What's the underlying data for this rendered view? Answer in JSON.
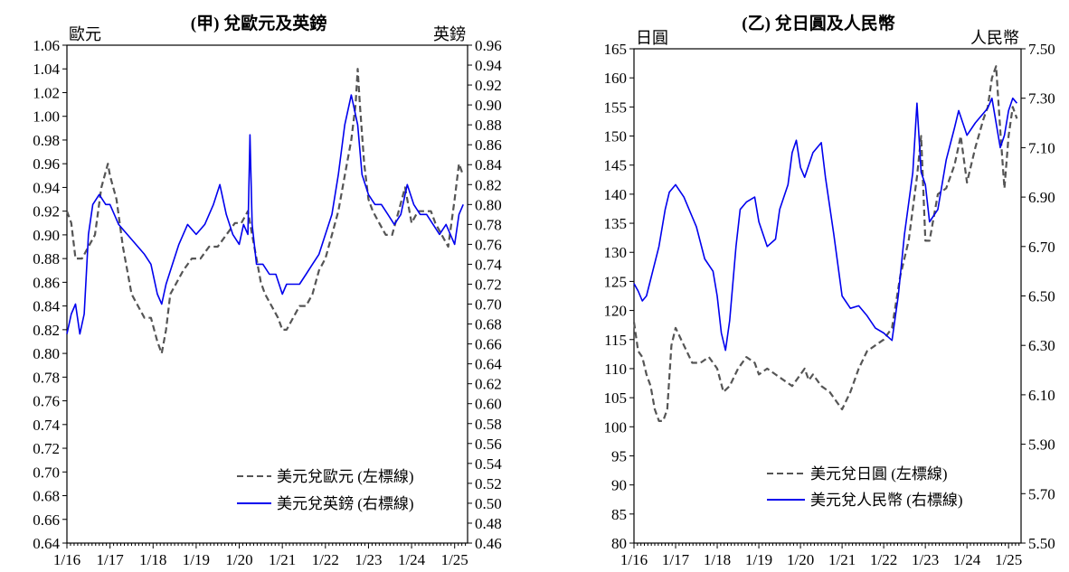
{
  "chart_data": [
    {
      "type": "line",
      "title": "(甲) 兌歐元及英鎊",
      "left_axis_label": "歐元",
      "right_axis_label": "英鎊",
      "x_ticks": [
        "1/16",
        "1/17",
        "1/18",
        "1/19",
        "1/20",
        "1/21",
        "1/22",
        "1/23",
        "1/24",
        "1/25"
      ],
      "x_range": [
        2016.0,
        2025.3
      ],
      "left_ylim": [
        0.64,
        1.06
      ],
      "left_ticks": [
        "0.64",
        "0.66",
        "0.68",
        "0.70",
        "0.72",
        "0.74",
        "0.76",
        "0.78",
        "0.80",
        "0.82",
        "0.84",
        "0.86",
        "0.88",
        "0.90",
        "0.92",
        "0.94",
        "0.96",
        "0.98",
        "1.00",
        "1.02",
        "1.04",
        "1.06"
      ],
      "right_ylim": [
        0.46,
        0.96
      ],
      "right_ticks": [
        "0.46",
        "0.48",
        "0.50",
        "0.52",
        "0.54",
        "0.56",
        "0.58",
        "0.60",
        "0.62",
        "0.64",
        "0.66",
        "0.68",
        "0.70",
        "0.72",
        "0.74",
        "0.76",
        "0.78",
        "0.80",
        "0.82",
        "0.84",
        "0.86",
        "0.88",
        "0.90",
        "0.92",
        "0.94",
        "0.96"
      ],
      "legend_position": "bottom-right",
      "series": [
        {
          "name": "美元兌歐元 (左標線)",
          "axis": "left",
          "style": "dashed",
          "color": "#555555",
          "x": [
            2016.0,
            2016.1,
            2016.2,
            2016.35,
            2016.5,
            2016.65,
            2016.8,
            2016.95,
            2017.0,
            2017.15,
            2017.3,
            2017.5,
            2017.65,
            2017.8,
            2017.95,
            2018.1,
            2018.2,
            2018.3,
            2018.4,
            2018.55,
            2018.7,
            2018.9,
            2019.1,
            2019.3,
            2019.5,
            2019.7,
            2019.9,
            2020.05,
            2020.2,
            2020.3,
            2020.4,
            2020.5,
            2020.6,
            2020.75,
            2020.9,
            2021.0,
            2021.1,
            2021.25,
            2021.4,
            2021.55,
            2021.7,
            2021.85,
            2022.0,
            2022.15,
            2022.3,
            2022.45,
            2022.6,
            2022.7,
            2022.75,
            2022.8,
            2022.9,
            2023.0,
            2023.1,
            2023.25,
            2023.4,
            2023.55,
            2023.7,
            2023.85,
            2024.0,
            2024.15,
            2024.3,
            2024.45,
            2024.55,
            2024.7,
            2024.85,
            2025.0,
            2025.1,
            2025.2
          ],
          "values": [
            0.92,
            0.91,
            0.88,
            0.88,
            0.89,
            0.9,
            0.94,
            0.96,
            0.95,
            0.93,
            0.89,
            0.85,
            0.84,
            0.83,
            0.83,
            0.81,
            0.8,
            0.82,
            0.85,
            0.86,
            0.87,
            0.88,
            0.88,
            0.89,
            0.89,
            0.9,
            0.91,
            0.91,
            0.92,
            0.9,
            0.88,
            0.86,
            0.85,
            0.84,
            0.83,
            0.82,
            0.82,
            0.83,
            0.84,
            0.84,
            0.85,
            0.87,
            0.88,
            0.9,
            0.92,
            0.95,
            0.98,
            1.01,
            1.04,
            1.01,
            0.96,
            0.93,
            0.92,
            0.91,
            0.9,
            0.9,
            0.92,
            0.94,
            0.91,
            0.92,
            0.92,
            0.92,
            0.91,
            0.9,
            0.89,
            0.93,
            0.96,
            0.95
          ]
        },
        {
          "name": "美元兌英鎊 (右標線)",
          "axis": "right",
          "style": "solid",
          "color": "#0000ee",
          "x": [
            2016.0,
            2016.1,
            2016.2,
            2016.3,
            2016.4,
            2016.5,
            2016.6,
            2016.75,
            2016.9,
            2017.0,
            2017.2,
            2017.4,
            2017.6,
            2017.8,
            2017.95,
            2018.1,
            2018.2,
            2018.3,
            2018.45,
            2018.6,
            2018.8,
            2019.0,
            2019.2,
            2019.4,
            2019.55,
            2019.7,
            2019.85,
            2020.0,
            2020.1,
            2020.2,
            2020.25,
            2020.3,
            2020.4,
            2020.55,
            2020.7,
            2020.85,
            2021.0,
            2021.1,
            2021.25,
            2021.4,
            2021.55,
            2021.7,
            2021.85,
            2022.0,
            2022.15,
            2022.3,
            2022.45,
            2022.6,
            2022.75,
            2022.85,
            2023.0,
            2023.15,
            2023.3,
            2023.45,
            2023.6,
            2023.75,
            2023.9,
            2024.05,
            2024.2,
            2024.35,
            2024.5,
            2024.65,
            2024.8,
            2025.0,
            2025.1,
            2025.2
          ],
          "values": [
            0.67,
            0.69,
            0.7,
            0.67,
            0.69,
            0.77,
            0.8,
            0.81,
            0.8,
            0.8,
            0.78,
            0.77,
            0.76,
            0.75,
            0.74,
            0.71,
            0.7,
            0.72,
            0.74,
            0.76,
            0.78,
            0.77,
            0.78,
            0.8,
            0.82,
            0.79,
            0.77,
            0.76,
            0.78,
            0.77,
            0.87,
            0.78,
            0.74,
            0.74,
            0.73,
            0.73,
            0.71,
            0.72,
            0.72,
            0.72,
            0.73,
            0.74,
            0.75,
            0.77,
            0.79,
            0.83,
            0.88,
            0.91,
            0.88,
            0.83,
            0.81,
            0.8,
            0.8,
            0.79,
            0.78,
            0.79,
            0.82,
            0.8,
            0.79,
            0.79,
            0.78,
            0.77,
            0.78,
            0.76,
            0.79,
            0.8
          ]
        }
      ]
    },
    {
      "type": "line",
      "title": "(乙) 兌日圓及人民幣",
      "left_axis_label": "日圓",
      "right_axis_label": "人民幣",
      "x_ticks": [
        "1/16",
        "1/17",
        "1/18",
        "1/19",
        "1/20",
        "1/21",
        "1/22",
        "1/23",
        "1/24",
        "1/25"
      ],
      "x_range": [
        2016.0,
        2025.3
      ],
      "left_ylim": [
        80,
        165
      ],
      "left_ticks": [
        "80",
        "85",
        "90",
        "95",
        "100",
        "105",
        "110",
        "115",
        "120",
        "125",
        "130",
        "135",
        "140",
        "145",
        "150",
        "155",
        "160",
        "165"
      ],
      "right_ylim": [
        5.5,
        7.5
      ],
      "right_ticks": [
        "5.50",
        "5.70",
        "5.90",
        "6.10",
        "6.30",
        "6.50",
        "6.70",
        "6.90",
        "7.10",
        "7.30",
        "7.50"
      ],
      "legend_position": "bottom-right",
      "series": [
        {
          "name": "美元兌日圓 (左標線)",
          "axis": "left",
          "style": "dashed",
          "color": "#555555",
          "x": [
            2016.0,
            2016.1,
            2016.2,
            2016.3,
            2016.4,
            2016.5,
            2016.6,
            2016.7,
            2016.8,
            2016.9,
            2017.0,
            2017.2,
            2017.4,
            2017.6,
            2017.8,
            2018.0,
            2018.15,
            2018.3,
            2018.5,
            2018.7,
            2018.9,
            2019.0,
            2019.2,
            2019.4,
            2019.6,
            2019.8,
            2020.0,
            2020.1,
            2020.2,
            2020.3,
            2020.5,
            2020.7,
            2020.9,
            2021.0,
            2021.2,
            2021.4,
            2021.6,
            2021.8,
            2022.0,
            2022.2,
            2022.4,
            2022.6,
            2022.8,
            2022.9,
            2023.0,
            2023.1,
            2023.3,
            2023.5,
            2023.7,
            2023.85,
            2024.0,
            2024.2,
            2024.4,
            2024.5,
            2024.6,
            2024.7,
            2024.8,
            2024.9,
            2025.0,
            2025.1,
            2025.2
          ],
          "values": [
            118,
            113,
            112,
            109,
            107,
            103,
            101,
            101,
            103,
            114,
            117,
            114,
            111,
            111,
            112,
            110,
            106,
            107,
            110,
            112,
            111,
            109,
            110,
            109,
            108,
            107,
            109,
            110,
            108,
            109,
            107,
            106,
            104,
            103,
            106,
            110,
            113,
            114,
            115,
            117,
            126,
            132,
            143,
            150,
            132,
            132,
            140,
            141,
            145,
            150,
            142,
            148,
            153,
            155,
            160,
            162,
            151,
            141,
            150,
            155,
            153
          ]
        },
        {
          "name": "美元兌人民幣 (右標線)",
          "axis": "right",
          "style": "solid",
          "color": "#0000ee",
          "x": [
            2016.0,
            2016.1,
            2016.2,
            2016.3,
            2016.45,
            2016.6,
            2016.75,
            2016.85,
            2017.0,
            2017.2,
            2017.4,
            2017.5,
            2017.7,
            2017.9,
            2018.0,
            2018.1,
            2018.2,
            2018.3,
            2018.45,
            2018.55,
            2018.7,
            2018.9,
            2019.0,
            2019.2,
            2019.4,
            2019.5,
            2019.7,
            2019.8,
            2019.9,
            2020.0,
            2020.1,
            2020.3,
            2020.5,
            2020.6,
            2020.8,
            2021.0,
            2021.2,
            2021.4,
            2021.6,
            2021.8,
            2022.0,
            2022.2,
            2022.35,
            2022.5,
            2022.7,
            2022.8,
            2022.9,
            2023.0,
            2023.1,
            2023.3,
            2023.5,
            2023.7,
            2023.8,
            2024.0,
            2024.2,
            2024.4,
            2024.5,
            2024.6,
            2024.7,
            2024.8,
            2024.9,
            2025.0,
            2025.1,
            2025.2
          ],
          "values": [
            6.55,
            6.52,
            6.48,
            6.5,
            6.6,
            6.7,
            6.85,
            6.92,
            6.95,
            6.9,
            6.82,
            6.78,
            6.65,
            6.6,
            6.5,
            6.35,
            6.28,
            6.4,
            6.7,
            6.85,
            6.88,
            6.9,
            6.8,
            6.7,
            6.73,
            6.85,
            6.95,
            7.08,
            7.13,
            7.02,
            6.98,
            7.08,
            7.12,
            6.98,
            6.75,
            6.5,
            6.45,
            6.46,
            6.42,
            6.37,
            6.35,
            6.32,
            6.5,
            6.75,
            7.0,
            7.28,
            7.0,
            6.95,
            6.8,
            6.85,
            7.05,
            7.18,
            7.25,
            7.15,
            7.2,
            7.24,
            7.26,
            7.3,
            7.2,
            7.1,
            7.15,
            7.25,
            7.3,
            7.28
          ]
        }
      ]
    }
  ]
}
